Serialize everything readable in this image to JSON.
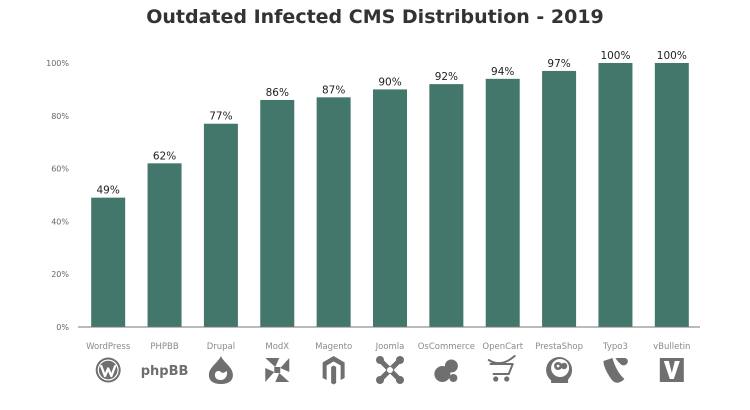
{
  "chart_data": {
    "type": "bar",
    "title": "Outdated Infected CMS Distribution - 2019",
    "xlabel": "",
    "ylabel": "",
    "ylim": [
      0,
      100
    ],
    "yticks": [
      "0%",
      "20%",
      "40%",
      "60%",
      "80%",
      "100%"
    ],
    "ytick_values": [
      0,
      20,
      40,
      60,
      80,
      100
    ],
    "categories": [
      "WordPress",
      "PHPBB",
      "Drupal",
      "ModX",
      "Magento",
      "Joomla",
      "OsCommerce",
      "OpenCart",
      "PrestaShop",
      "Typo3",
      "vBulletin"
    ],
    "values": [
      49,
      62,
      77,
      86,
      87,
      90,
      92,
      94,
      97,
      100,
      100
    ],
    "data_labels": [
      "49%",
      "62%",
      "77%",
      "86%",
      "87%",
      "90%",
      "92%",
      "94%",
      "97%",
      "100%",
      "100%"
    ],
    "logo_icons": [
      "wordpress-logo-icon",
      "phpbb-logo-icon",
      "drupal-logo-icon",
      "modx-logo-icon",
      "magento-logo-icon",
      "joomla-logo-icon",
      "oscommerce-logo-icon",
      "opencart-logo-icon",
      "prestashop-logo-icon",
      "typo3-logo-icon",
      "vbulletin-logo-icon"
    ],
    "phpbb_logo_text": "phpBB",
    "bar_color": "#43776b",
    "icon_color": "#6f6f6f",
    "grid": false,
    "legend": "none"
  }
}
